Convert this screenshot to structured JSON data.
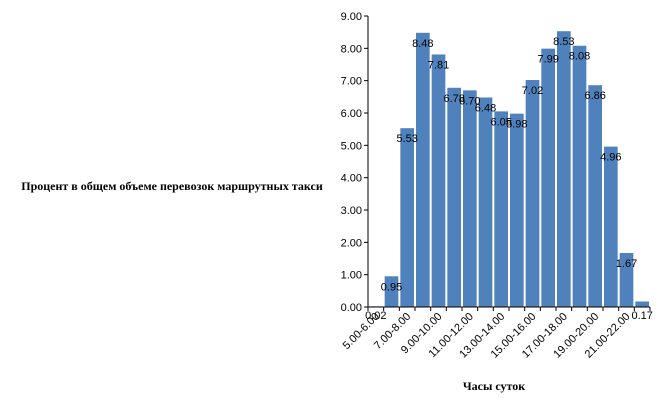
{
  "chart_data": {
    "type": "bar",
    "ylabel": "Процент в общем объеме перевозок маршрутных такси",
    "xlabel": "Часы суток",
    "ylim": [
      0,
      9
    ],
    "yticks": [
      "0.00",
      "1.00",
      "2.00",
      "3.00",
      "4.00",
      "5.00",
      "6.00",
      "7.00",
      "8.00",
      "9.00"
    ],
    "categories": [
      "5.00-6.00",
      "6.00-7.00",
      "7.00-8.00",
      "8.00-9.00",
      "9.00-10.00",
      "10.00-11.00",
      "11.00-12.00",
      "12.00-13.00",
      "13.00-14.00",
      "14.00-15.00",
      "15.00-16.00",
      "16.00-17.00",
      "17.00-18.00",
      "18.00-19.00",
      "19.00-20.00",
      "20.00-21.00",
      "21.00-22.00",
      "22.00-23.00"
    ],
    "x_tick_labels": [
      "5.00-6.00",
      "7.00-8.00",
      "9.00-10.00",
      "11.00-12.00",
      "13.00-14.00",
      "15.00-16.00",
      "17.00-18.00",
      "19.00-20.00",
      "21.00-22.00"
    ],
    "values": [
      0.02,
      0.95,
      5.53,
      8.48,
      7.81,
      6.78,
      6.7,
      6.48,
      6.05,
      5.98,
      7.02,
      7.99,
      8.53,
      8.08,
      6.86,
      4.96,
      1.67,
      0.17
    ],
    "value_labels": [
      "0.02",
      "0.95",
      "5.53",
      "8.48",
      "7.81",
      "6.78",
      "6.70",
      "6.48",
      "6.05",
      "5.98",
      "7.02",
      "7.99",
      "8.53",
      "8.08",
      "6.86",
      "4.96",
      "1.67",
      "0.17"
    ],
    "bar_color": "#4f81bd",
    "grid": false,
    "legend": "none"
  }
}
